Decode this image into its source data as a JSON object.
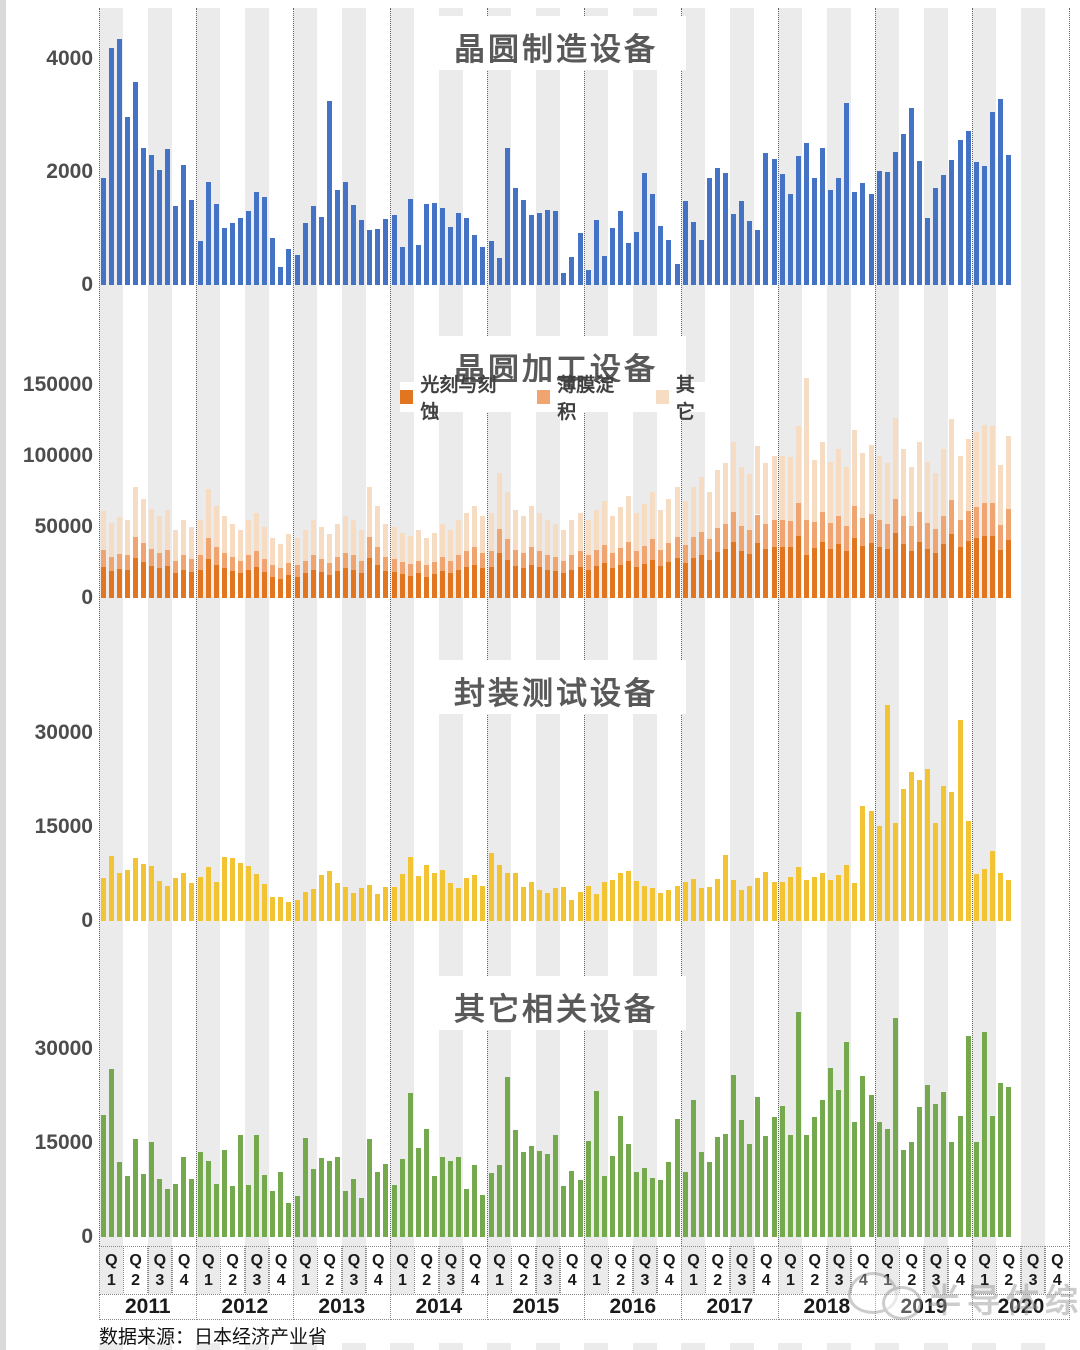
{
  "footer": {
    "source": "数据来源：日本经济产业省"
  },
  "watermark": {
    "text": "半导体综研",
    "icon": "wechat-icon"
  },
  "xaxis": {
    "quarters": [
      "Q1",
      "Q2",
      "Q3",
      "Q4"
    ],
    "years": [
      "2011",
      "2012",
      "2013",
      "2014",
      "2015",
      "2016",
      "2017",
      "2018",
      "2019",
      "2020"
    ],
    "note": "monthly bars, Jan 2011 - May 2020"
  },
  "colors": {
    "blue": "#4472c4",
    "orange_dark": "#e2751f",
    "orange_mid": "#f0a470",
    "orange_light": "#f7dcc4",
    "yellow": "#f2c332",
    "green": "#74aa4d",
    "stripe": "#ebebeb",
    "title_gray": "#595959"
  },
  "chart_data": [
    {
      "id": "wafer_mfg",
      "type": "bar",
      "title": "晶圆制造设备",
      "color": "#4472c4",
      "ylim": [
        0,
        4900
      ],
      "grid": "year dotted verticals, quarterly gray banding",
      "yticks": [
        {
          "label": "4000",
          "value": 4000
        },
        {
          "label": "2000",
          "value": 2000
        },
        {
          "label": "0",
          "value": 0
        }
      ],
      "values": [
        1900,
        4200,
        4350,
        2980,
        3600,
        2420,
        2300,
        2040,
        2400,
        1400,
        2120,
        1500,
        780,
        1820,
        1440,
        1010,
        1090,
        1190,
        1310,
        1640,
        1560,
        840,
        310,
        640,
        530,
        1090,
        1400,
        1200,
        3250,
        1690,
        1830,
        1420,
        1150,
        970,
        1000,
        1160,
        1240,
        680,
        1530,
        710,
        1430,
        1450,
        1360,
        1030,
        1280,
        1180,
        890,
        670,
        770,
        470,
        2420,
        1720,
        1500,
        1240,
        1280,
        1330,
        1310,
        210,
        500,
        920,
        270,
        1150,
        520,
        1010,
        1310,
        750,
        930,
        1990,
        1610,
        1040,
        790,
        370,
        1490,
        1120,
        790,
        1900,
        2070,
        1990,
        1260,
        1480,
        1130,
        970,
        2330,
        2230,
        1970,
        1610,
        2280,
        2520,
        1900,
        2430,
        1680,
        1900,
        3220,
        1650,
        1810,
        1610,
        2010,
        2000,
        2350,
        2670,
        3130,
        2200,
        1180,
        1720,
        1940,
        2220,
        2570,
        2730,
        2180,
        2100,
        3070,
        3290,
        2300
      ]
    },
    {
      "id": "wafer_proc",
      "type": "stacked-bar",
      "title": "晶圆加工设备",
      "ylim": [
        0,
        180000
      ],
      "yticks": [
        {
          "label": "150000",
          "value": 150000
        },
        {
          "label": "100000",
          "value": 100000
        },
        {
          "label": "50000",
          "value": 50000
        },
        {
          "label": "0",
          "value": 0
        }
      ],
      "legend": [
        {
          "label": "光刻与刻蚀",
          "color": "#e2751f"
        },
        {
          "label": "薄膜淀积",
          "color": "#f0a470"
        },
        {
          "label": "其它",
          "color": "#f7dcc4"
        }
      ],
      "series": [
        {
          "name": "光刻与刻蚀",
          "color": "#e2751f",
          "values": [
            22000,
            19100,
            20500,
            19800,
            28100,
            25200,
            22700,
            20900,
            22300,
            17300,
            19800,
            18000,
            19800,
            27700,
            23400,
            20900,
            18700,
            17300,
            19800,
            21600,
            18000,
            15100,
            13700,
            16200,
            15100,
            17300,
            19800,
            18000,
            16200,
            18700,
            20900,
            19800,
            17300,
            28100,
            23400,
            18700,
            18000,
            16600,
            15800,
            17300,
            15100,
            16600,
            18700,
            17300,
            19800,
            21600,
            23400,
            20900,
            21600,
            31700,
            27000,
            22300,
            20900,
            23400,
            21600,
            19800,
            18700,
            17300,
            19800,
            21600,
            19800,
            22300,
            24500,
            20900,
            23000,
            25900,
            21600,
            23800,
            27000,
            22300,
            25200,
            28100,
            24500,
            28100,
            30600,
            27000,
            32400,
            34200,
            39600,
            33100,
            31300,
            38500,
            34200,
            36000,
            36000,
            35600,
            43600,
            30000,
            34900,
            39600,
            34600,
            37800,
            33100,
            42500,
            36700,
            38900,
            36000,
            34200,
            45700,
            37800,
            33100,
            39600,
            34600,
            31700,
            37800,
            45400,
            36000,
            40300,
            42100,
            43900,
            43600,
            33800,
            41000
          ]
        },
        {
          "name": "薄膜淀积",
          "color": "#f0a470",
          "values": [
            11600,
            10100,
            10800,
            10500,
            14800,
            13300,
            12000,
            11000,
            11800,
            9100,
            10500,
            9500,
            10500,
            14600,
            12400,
            11000,
            9900,
            9100,
            10500,
            11400,
            9500,
            8000,
            7200,
            8600,
            8000,
            9100,
            10500,
            9500,
            8600,
            9900,
            11000,
            10500,
            9100,
            14800,
            12400,
            9900,
            9500,
            8700,
            8400,
            9100,
            8000,
            8700,
            9900,
            9100,
            10500,
            11400,
            12400,
            11000,
            11400,
            16700,
            14300,
            11800,
            11000,
            12400,
            11400,
            10500,
            9900,
            9100,
            10500,
            11400,
            10500,
            11800,
            12900,
            11000,
            12200,
            13700,
            11400,
            12500,
            14300,
            11800,
            13300,
            14800,
            12900,
            14800,
            16200,
            14300,
            17100,
            18100,
            20900,
            17500,
            16500,
            20300,
            18100,
            19000,
            19000,
            18800,
            23000,
            25000,
            18400,
            20900,
            18200,
            20000,
            17500,
            22400,
            19400,
            20500,
            19000,
            18100,
            24100,
            20000,
            17500,
            20900,
            18200,
            16700,
            20000,
            23900,
            19000,
            21300,
            22200,
            23200,
            23000,
            17900,
            21700
          ]
        },
        {
          "name": "其它",
          "color": "#f7dcc4",
          "values": [
            27400,
            23800,
            25700,
            24700,
            35100,
            31500,
            28300,
            26100,
            27900,
            21600,
            24700,
            22500,
            24700,
            34700,
            29200,
            26100,
            23400,
            21600,
            24700,
            27000,
            22500,
            18900,
            17100,
            20200,
            18900,
            21600,
            24700,
            22500,
            20200,
            23400,
            26100,
            24700,
            21600,
            35100,
            29200,
            23400,
            22500,
            20700,
            19800,
            21600,
            18900,
            20700,
            23400,
            21600,
            24700,
            27000,
            29200,
            26100,
            27000,
            39600,
            33700,
            27900,
            26100,
            29200,
            27000,
            24700,
            23400,
            21600,
            24700,
            27000,
            24700,
            27900,
            30600,
            26100,
            28800,
            32400,
            27000,
            29700,
            33700,
            27900,
            31500,
            35100,
            30600,
            35100,
            38200,
            33700,
            40500,
            42700,
            49500,
            41400,
            39200,
            48200,
            42700,
            45000,
            45000,
            44600,
            54400,
            100000,
            43700,
            49500,
            43200,
            47200,
            41400,
            53100,
            45900,
            48600,
            45000,
            42700,
            57200,
            47200,
            41400,
            49500,
            43200,
            39600,
            47200,
            56700,
            45000,
            50400,
            52700,
            54900,
            54400,
            42300,
            51300
          ]
        }
      ]
    },
    {
      "id": "pkg_test",
      "type": "bar",
      "title": "封装测试设备",
      "color": "#f2c332",
      "ylim": [
        0,
        37000
      ],
      "yticks": [
        {
          "label": "30000",
          "value": 30000
        },
        {
          "label": "15000",
          "value": 15000
        },
        {
          "label": "0",
          "value": 0
        }
      ],
      "values": [
        6800,
        10300,
        7600,
        8200,
        10000,
        9100,
        8700,
        6400,
        5600,
        6800,
        7600,
        6100,
        7000,
        8600,
        6300,
        10200,
        10000,
        9300,
        8700,
        7500,
        5900,
        3800,
        3900,
        3000,
        3400,
        4700,
        5100,
        7400,
        8000,
        6100,
        5400,
        4500,
        5200,
        5700,
        4300,
        5400,
        5500,
        7500,
        10200,
        7200,
        9000,
        7700,
        8200,
        6100,
        5300,
        6900,
        7400,
        5600,
        10900,
        8900,
        7600,
        7700,
        5500,
        6300,
        5000,
        4400,
        5300,
        5500,
        3300,
        4600,
        5600,
        4300,
        6200,
        6500,
        7600,
        7900,
        6400,
        5600,
        5200,
        4400,
        5000,
        5600,
        6200,
        6700,
        5300,
        5500,
        6700,
        10600,
        6600,
        5000,
        5600,
        6900,
        7800,
        6300,
        6300,
        7100,
        8600,
        6500,
        7000,
        7600,
        6600,
        7400,
        8900,
        6100,
        18300,
        17500,
        15200,
        34500,
        15600,
        21000,
        23800,
        22500,
        24300,
        15600,
        21500,
        20600,
        32000,
        16000,
        7500,
        8300,
        11100,
        7700,
        6600
      ]
    },
    {
      "id": "other_equip",
      "type": "bar",
      "title": "其它相关设备",
      "color": "#74aa4d",
      "ylim": [
        0,
        38000
      ],
      "yticks": [
        {
          "label": "30000",
          "value": 30000
        },
        {
          "label": "15000",
          "value": 15000
        },
        {
          "label": "0",
          "value": 0
        }
      ],
      "values": [
        19500,
        26800,
        11900,
        9700,
        15600,
        10100,
        15100,
        9200,
        7700,
        8500,
        12800,
        9300,
        13600,
        12200,
        8500,
        13900,
        8200,
        16200,
        8300,
        16300,
        9900,
        7300,
        10300,
        5400,
        6600,
        15800,
        10800,
        12600,
        12200,
        12800,
        7400,
        9300,
        6300,
        15700,
        10400,
        11600,
        8300,
        12500,
        23000,
        14200,
        17200,
        9800,
        12700,
        12200,
        12800,
        7700,
        11500,
        6700,
        10200,
        11500,
        25500,
        17000,
        13500,
        14500,
        13800,
        13300,
        16300,
        8200,
        10500,
        9100,
        15300,
        23300,
        9700,
        12900,
        19300,
        14800,
        10300,
        11000,
        9400,
        9100,
        11900,
        18800,
        10400,
        21900,
        13500,
        11900,
        16000,
        16400,
        25900,
        18700,
        14800,
        22300,
        16100,
        19100,
        20900,
        16300,
        35900,
        16300,
        19200,
        21800,
        26900,
        23500,
        31100,
        18400,
        25700,
        22700,
        18400,
        17200,
        35000,
        13900,
        15100,
        20800,
        24300,
        21200,
        23100,
        15100,
        19300,
        32000,
        15100,
        32700,
        19300,
        24600,
        24000
      ]
    }
  ]
}
